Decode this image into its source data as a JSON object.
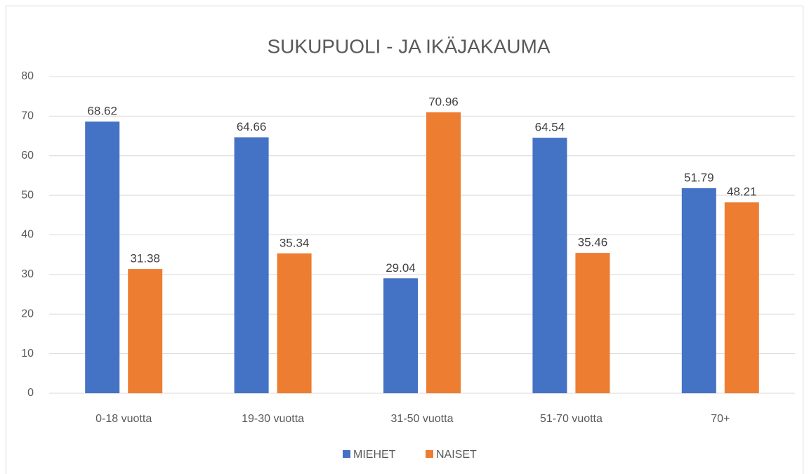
{
  "chart_data": {
    "type": "bar",
    "title": "SUKUPUOLI - JA IKÄJAKAUMA",
    "categories": [
      "0-18 vuotta",
      "19-30 vuotta",
      "31-50 vuotta",
      "51-70 vuotta",
      "70+"
    ],
    "series": [
      {
        "name": "MIEHET",
        "color": "#4472c4",
        "values": [
          68.62,
          64.66,
          29.04,
          64.54,
          51.79
        ]
      },
      {
        "name": "NAISET",
        "color": "#ed7d31",
        "values": [
          31.38,
          35.34,
          70.96,
          35.46,
          48.21
        ]
      }
    ],
    "ylim": [
      0,
      80
    ],
    "yticks": [
      0,
      10,
      20,
      30,
      40,
      50,
      60,
      70,
      80
    ],
    "grid": true,
    "legend": "bottom"
  }
}
